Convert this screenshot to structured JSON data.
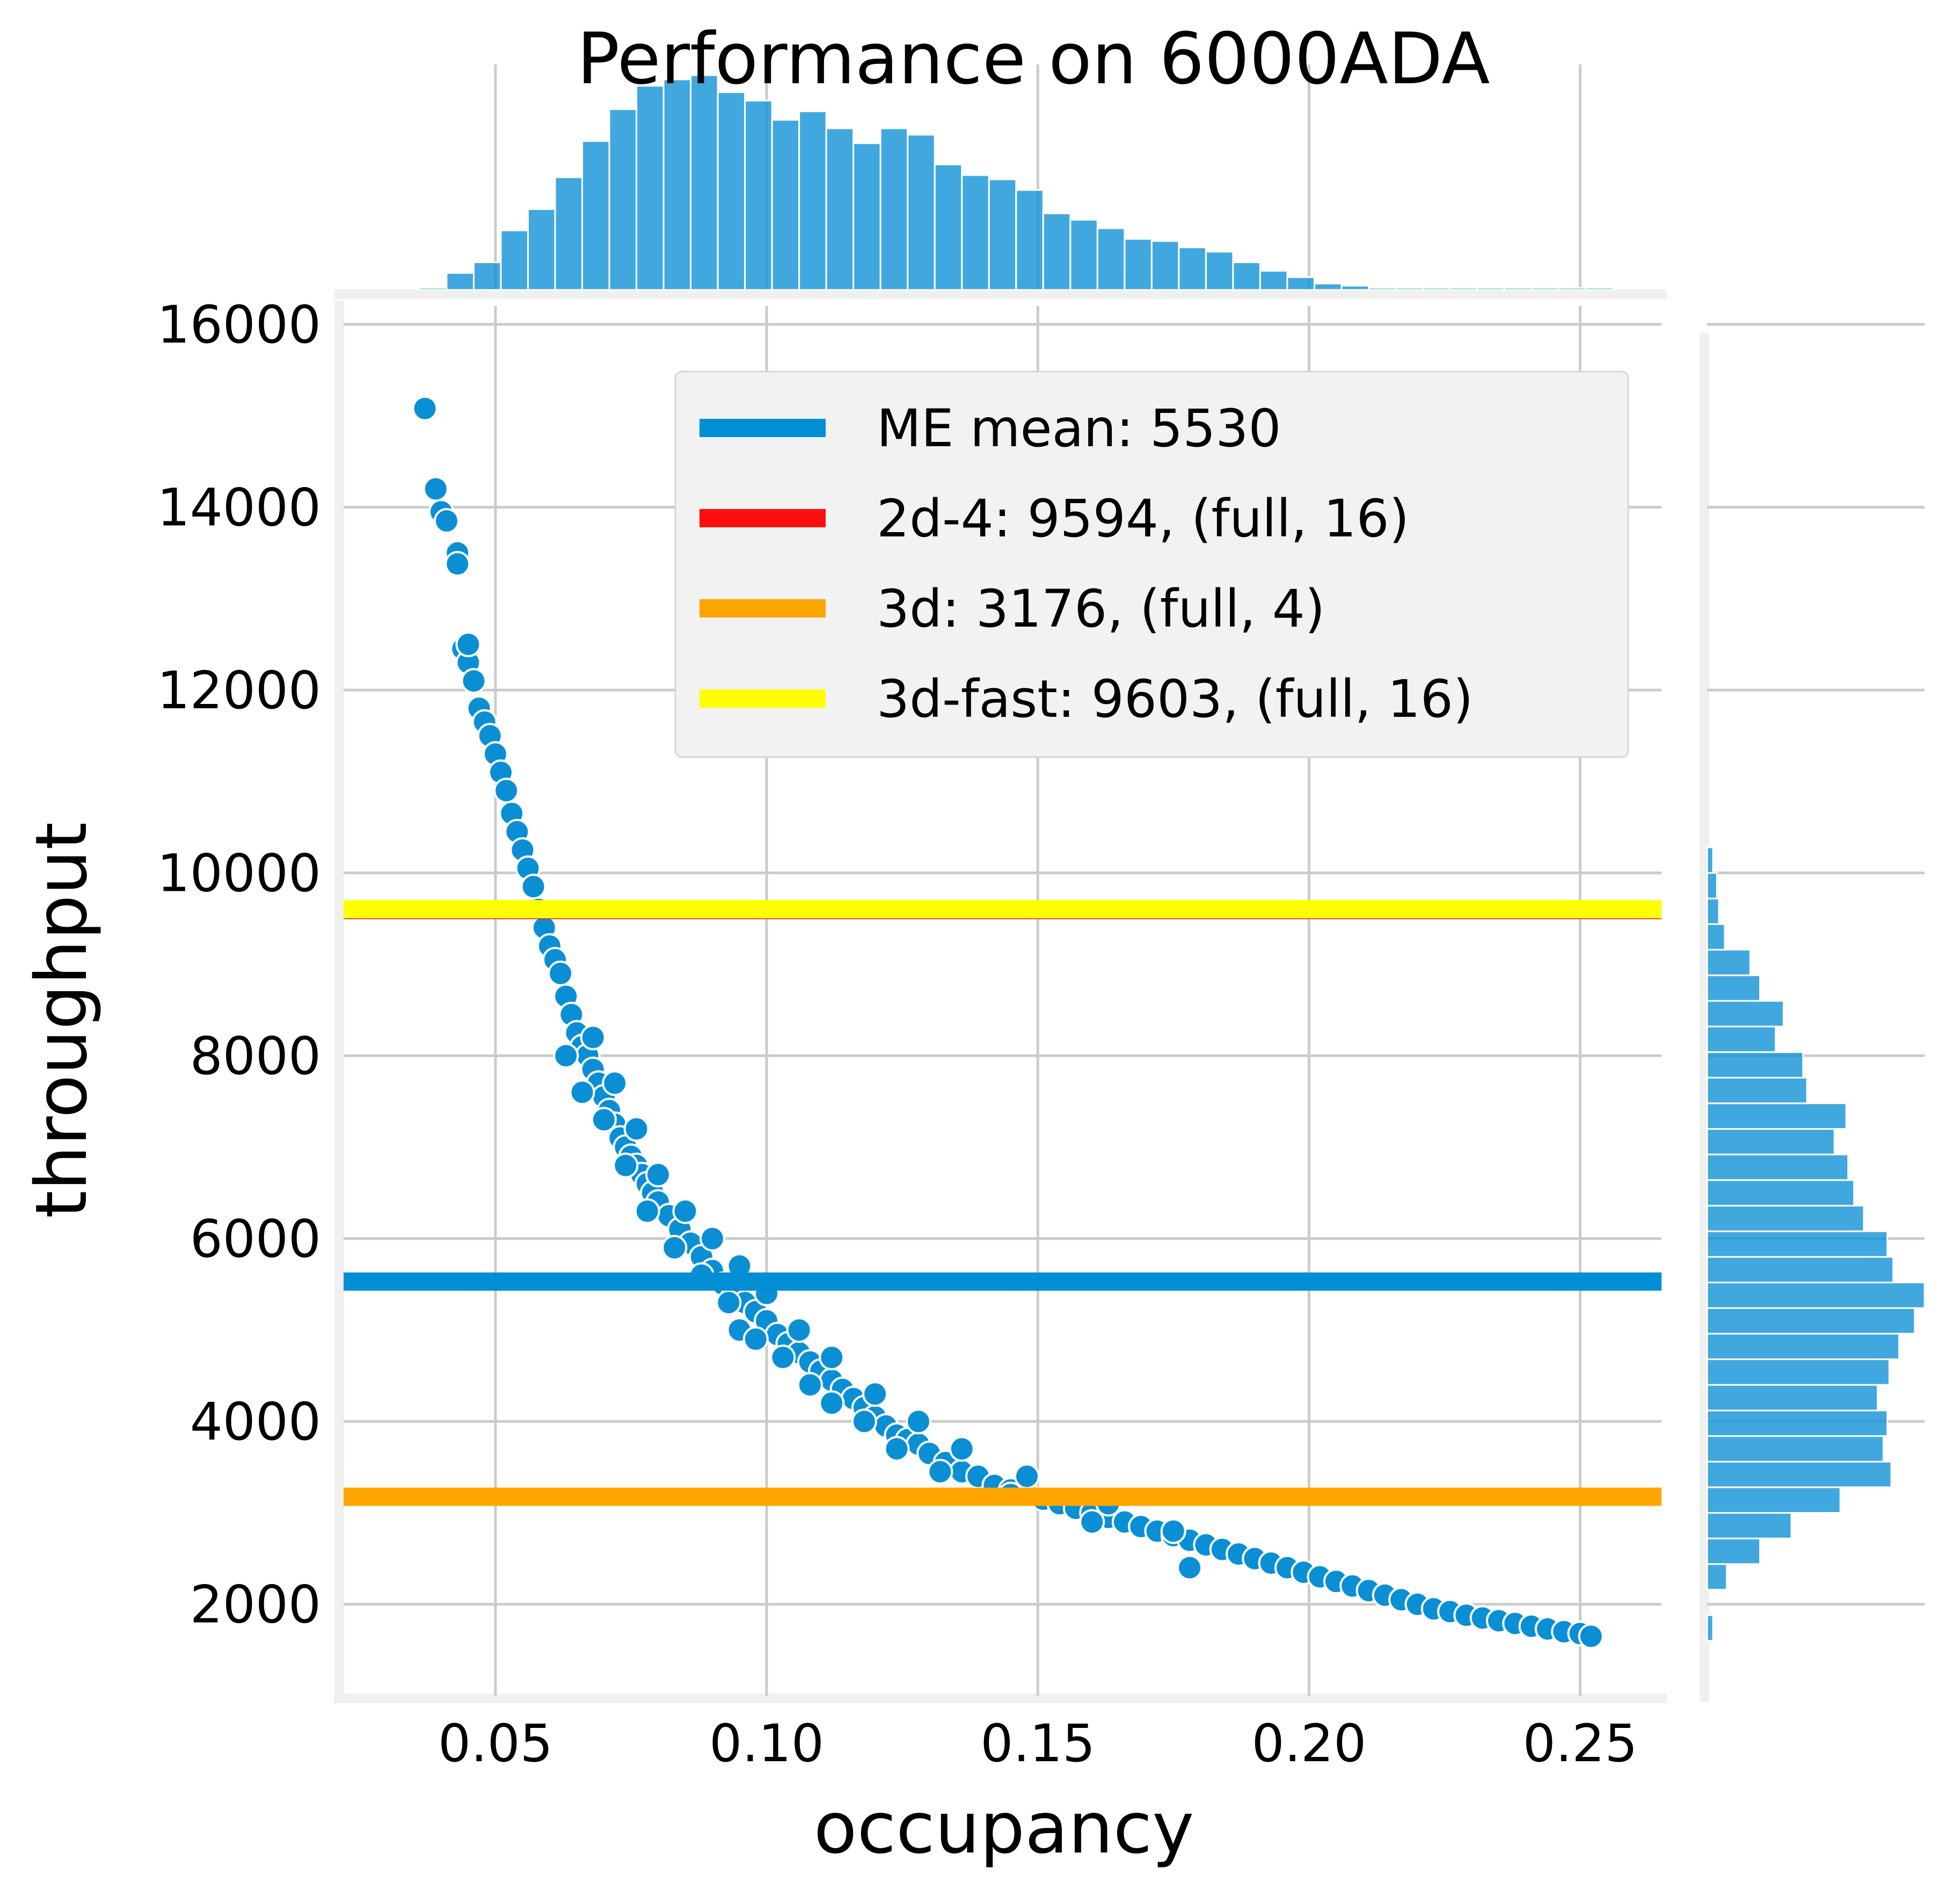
{
  "chart_data": {
    "type": "scatter",
    "title": "Performance on 6000ADA",
    "xlabel": "occupancy",
    "ylabel": "throughput",
    "xlim": [
      0.022,
      0.265
    ],
    "ylim": [
      1000,
      16200
    ],
    "xticks": [
      0.05,
      0.1,
      0.15,
      0.2,
      0.25
    ],
    "xtick_labels": [
      "0.05",
      "0.10",
      "0.15",
      "0.20",
      "0.25"
    ],
    "yticks": [
      2000,
      4000,
      6000,
      8000,
      10000,
      12000,
      14000,
      16000
    ],
    "ytick_labels": [
      "2000",
      "4000",
      "6000",
      "8000",
      "10000",
      "12000",
      "14000",
      "16000"
    ],
    "grid": true,
    "legend_position": "upper-center",
    "series": [
      {
        "kind": "scatter",
        "color": "#0a8fd5",
        "points": [
          [
            0.037,
            15080
          ],
          [
            0.039,
            14200
          ],
          [
            0.04,
            13950
          ],
          [
            0.041,
            13850
          ],
          [
            0.043,
            13500
          ],
          [
            0.043,
            13380
          ],
          [
            0.044,
            12450
          ],
          [
            0.045,
            12300
          ],
          [
            0.045,
            12500
          ],
          [
            0.046,
            12100
          ],
          [
            0.047,
            11800
          ],
          [
            0.048,
            11650
          ],
          [
            0.049,
            11500
          ],
          [
            0.05,
            11300
          ],
          [
            0.051,
            11100
          ],
          [
            0.052,
            10900
          ],
          [
            0.053,
            10650
          ],
          [
            0.054,
            10450
          ],
          [
            0.055,
            10250
          ],
          [
            0.056,
            10050
          ],
          [
            0.057,
            9850
          ],
          [
            0.058,
            9600
          ],
          [
            0.059,
            9400
          ],
          [
            0.06,
            9200
          ],
          [
            0.061,
            9050
          ],
          [
            0.062,
            8900
          ],
          [
            0.063,
            8650
          ],
          [
            0.064,
            8450
          ],
          [
            0.065,
            8250
          ],
          [
            0.066,
            8100
          ],
          [
            0.067,
            8000
          ],
          [
            0.068,
            7850
          ],
          [
            0.069,
            7700
          ],
          [
            0.07,
            7550
          ],
          [
            0.071,
            7400
          ],
          [
            0.072,
            7250
          ],
          [
            0.073,
            7100
          ],
          [
            0.074,
            7000
          ],
          [
            0.075,
            6900
          ],
          [
            0.076,
            6800
          ],
          [
            0.077,
            6700
          ],
          [
            0.078,
            6600
          ],
          [
            0.079,
            6500
          ],
          [
            0.08,
            6400
          ],
          [
            0.082,
            6250
          ],
          [
            0.084,
            6100
          ],
          [
            0.086,
            5950
          ],
          [
            0.088,
            5800
          ],
          [
            0.09,
            5650
          ],
          [
            0.092,
            5500
          ],
          [
            0.094,
            5400
          ],
          [
            0.095,
            5000
          ],
          [
            0.096,
            5300
          ],
          [
            0.098,
            5200
          ],
          [
            0.1,
            5100
          ],
          [
            0.102,
            4950
          ],
          [
            0.104,
            4850
          ],
          [
            0.106,
            4750
          ],
          [
            0.108,
            4650
          ],
          [
            0.11,
            4550
          ],
          [
            0.112,
            4450
          ],
          [
            0.114,
            4350
          ],
          [
            0.116,
            4250
          ],
          [
            0.118,
            4150
          ],
          [
            0.12,
            4050
          ],
          [
            0.122,
            3950
          ],
          [
            0.124,
            3850
          ],
          [
            0.126,
            3800
          ],
          [
            0.128,
            3750
          ],
          [
            0.13,
            3650
          ],
          [
            0.133,
            3550
          ],
          [
            0.136,
            3450
          ],
          [
            0.139,
            3400
          ],
          [
            0.142,
            3300
          ],
          [
            0.145,
            3250
          ],
          [
            0.148,
            3200
          ],
          [
            0.151,
            3150
          ],
          [
            0.154,
            3100
          ],
          [
            0.157,
            3050
          ],
          [
            0.16,
            3000
          ],
          [
            0.163,
            2950
          ],
          [
            0.166,
            2900
          ],
          [
            0.169,
            2850
          ],
          [
            0.172,
            2800
          ],
          [
            0.175,
            2750
          ],
          [
            0.178,
            2700
          ],
          [
            0.181,
            2650
          ],
          [
            0.184,
            2600
          ],
          [
            0.187,
            2550
          ],
          [
            0.19,
            2500
          ],
          [
            0.193,
            2450
          ],
          [
            0.196,
            2400
          ],
          [
            0.199,
            2350
          ],
          [
            0.202,
            2300
          ],
          [
            0.205,
            2250
          ],
          [
            0.208,
            2200
          ],
          [
            0.211,
            2150
          ],
          [
            0.214,
            2100
          ],
          [
            0.217,
            2050
          ],
          [
            0.22,
            2000
          ],
          [
            0.223,
            1950
          ],
          [
            0.226,
            1920
          ],
          [
            0.229,
            1880
          ],
          [
            0.232,
            1850
          ],
          [
            0.235,
            1820
          ],
          [
            0.238,
            1790
          ],
          [
            0.241,
            1760
          ],
          [
            0.244,
            1730
          ],
          [
            0.247,
            1700
          ],
          [
            0.25,
            1680
          ],
          [
            0.252,
            1650
          ],
          [
            0.063,
            8000
          ],
          [
            0.066,
            7600
          ],
          [
            0.07,
            7300
          ],
          [
            0.074,
            6800
          ],
          [
            0.078,
            6300
          ],
          [
            0.083,
            5900
          ],
          [
            0.088,
            5600
          ],
          [
            0.093,
            5300
          ],
          [
            0.098,
            4900
          ],
          [
            0.103,
            4700
          ],
          [
            0.108,
            4400
          ],
          [
            0.112,
            4200
          ],
          [
            0.118,
            4000
          ],
          [
            0.124,
            3700
          ],
          [
            0.132,
            3450
          ],
          [
            0.145,
            3200
          ],
          [
            0.16,
            2900
          ],
          [
            0.178,
            2400
          ],
          [
            0.068,
            8200
          ],
          [
            0.072,
            7700
          ],
          [
            0.076,
            7200
          ],
          [
            0.08,
            6700
          ],
          [
            0.085,
            6300
          ],
          [
            0.09,
            6000
          ],
          [
            0.095,
            5700
          ],
          [
            0.1,
            5400
          ],
          [
            0.106,
            5000
          ],
          [
            0.112,
            4700
          ],
          [
            0.12,
            4300
          ],
          [
            0.128,
            4000
          ],
          [
            0.136,
            3700
          ],
          [
            0.148,
            3400
          ],
          [
            0.163,
            3100
          ],
          [
            0.175,
            2800
          ]
        ]
      },
      {
        "kind": "hline",
        "name": "ME mean: 5530",
        "value": 5530,
        "color": "#008fd5"
      },
      {
        "kind": "hline",
        "name": "2d-4: 9594, (full, 16)",
        "value": 9594,
        "color": "#fc0f0f"
      },
      {
        "kind": "hline",
        "name": "3d: 3176, (full, 4)",
        "value": 3176,
        "color": "#ffa500"
      },
      {
        "kind": "hline",
        "name": "3d-fast: 9603, (full, 16)",
        "value": 9603,
        "color": "#ffff00"
      }
    ],
    "marginal_x": {
      "type": "histogram",
      "color": "#0a8fd5",
      "bin_edges": [
        0.036,
        0.041,
        0.046,
        0.051,
        0.056,
        0.061,
        0.066,
        0.071,
        0.076,
        0.081,
        0.086,
        0.091,
        0.096,
        0.101,
        0.106,
        0.111,
        0.116,
        0.121,
        0.126,
        0.131,
        0.136,
        0.141,
        0.146,
        0.151,
        0.156,
        0.161,
        0.166,
        0.171,
        0.176,
        0.181,
        0.186,
        0.191,
        0.196,
        0.201,
        0.206,
        0.211,
        0.216,
        0.221,
        0.226,
        0.231,
        0.236,
        0.241,
        0.246,
        0.251,
        0.256
      ],
      "counts": [
        1,
        8,
        13,
        28,
        38,
        53,
        70,
        85,
        96,
        99,
        101,
        93,
        89,
        80,
        84,
        76,
        69,
        76,
        73,
        59,
        54,
        52,
        47,
        36,
        33,
        29,
        24,
        23,
        20,
        18,
        13,
        9,
        6,
        3,
        2,
        1,
        1,
        1,
        1,
        1,
        1,
        1,
        1,
        1
      ]
    },
    "marginal_y": {
      "type": "histogram",
      "color": "#0a8fd5",
      "bin_edges": [
        1600,
        1880,
        2160,
        2440,
        2720,
        3000,
        3280,
        3560,
        3840,
        4120,
        4400,
        4680,
        4960,
        5240,
        5520,
        5800,
        6080,
        6360,
        6640,
        6920,
        7200,
        7480,
        7760,
        8040,
        8320,
        8600,
        8880,
        9160,
        9440,
        9720,
        10000,
        10280
      ],
      "counts": [
        3,
        0,
        10,
        27,
        43,
        68,
        94,
        90,
        92,
        87,
        93,
        98,
        106,
        111,
        95,
        92,
        80,
        75,
        72,
        65,
        71,
        51,
        49,
        35,
        39,
        27,
        22,
        9,
        6,
        5,
        3
      ]
    }
  }
}
